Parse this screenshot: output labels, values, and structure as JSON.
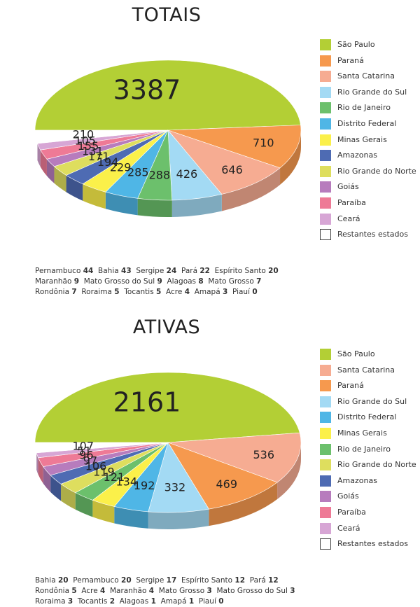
{
  "chart_data": [
    {
      "type": "pie",
      "title": "TOTAIS",
      "slices": [
        {
          "label": "São Paulo",
          "value": 3387,
          "color": "#b3cf35"
        },
        {
          "label": "Paraná",
          "value": 710,
          "color": "#f6994e"
        },
        {
          "label": "Santa Catarina",
          "value": 646,
          "color": "#f6ac92"
        },
        {
          "label": "Rio Grande do Sul",
          "value": 426,
          "color": "#a3daf4"
        },
        {
          "label": "Rio de Janeiro",
          "value": 288,
          "color": "#6cc06c"
        },
        {
          "label": "Distrito Federal",
          "value": 285,
          "color": "#4fb6e6"
        },
        {
          "label": "Minas Gerais",
          "value": 229,
          "color": "#fbf04a"
        },
        {
          "label": "Amazonas",
          "value": 194,
          "color": "#4e6bb3"
        },
        {
          "label": "Rio Grande do Norte",
          "value": 171,
          "color": "#dede5e"
        },
        {
          "label": "Goiás",
          "value": 131,
          "color": "#b77cbd"
        },
        {
          "label": "Paraíba",
          "value": 155,
          "color": "#ee7a96"
        },
        {
          "label": "Ceará",
          "value": 105,
          "color": "#d7a6d5"
        },
        {
          "label": "Restantes estados",
          "value": 210,
          "color": "#ffffff"
        }
      ],
      "legend": [
        "São Paulo",
        "Paraná",
        "Santa Catarina",
        "Rio Grande do Sul",
        "Rio de Janeiro",
        "Distrito Federal",
        "Minas Gerais",
        "Amazonas",
        "Rio Grande do Norte",
        "Goiás",
        "Paraíba",
        "Ceará",
        "Restantes estados"
      ],
      "legend_placement": "right",
      "footnote": [
        [
          {
            "name": "Pernambuco",
            "value": 44
          },
          {
            "name": "Bahia",
            "value": 43
          },
          {
            "name": "Sergipe",
            "value": 24
          },
          {
            "name": "Pará",
            "value": 22
          },
          {
            "name": "Espírito Santo",
            "value": 20
          }
        ],
        [
          {
            "name": "Maranhão",
            "value": 9
          },
          {
            "name": "Mato Grosso do Sul",
            "value": 9
          },
          {
            "name": "Alagoas",
            "value": 8
          },
          {
            "name": "Mato Grosso",
            "value": 7
          }
        ],
        [
          {
            "name": "Rondônia",
            "value": 7
          },
          {
            "name": "Roraima",
            "value": 5
          },
          {
            "name": "Tocantis",
            "value": 5
          },
          {
            "name": "Acre",
            "value": 4
          },
          {
            "name": "Amapá",
            "value": 3
          },
          {
            "name": "Piauí",
            "value": 0
          }
        ]
      ]
    },
    {
      "type": "pie",
      "title": "ATIVAS",
      "slices": [
        {
          "label": "São Paulo",
          "value": 2161,
          "color": "#b3cf35"
        },
        {
          "label": "Santa Catarina",
          "value": 536,
          "color": "#f6ac92"
        },
        {
          "label": "Paraná",
          "value": 469,
          "color": "#f6994e"
        },
        {
          "label": "Rio Grande do Sul",
          "value": 332,
          "color": "#a3daf4"
        },
        {
          "label": "Distrito Federal",
          "value": 192,
          "color": "#4fb6e6"
        },
        {
          "label": "Minas Gerais",
          "value": 134,
          "color": "#fbf04a"
        },
        {
          "label": "Rio de Janeiro",
          "value": 121,
          "color": "#6cc06c"
        },
        {
          "label": "Rio Grande do Norte",
          "value": 119,
          "color": "#dede5e"
        },
        {
          "label": "Amazonas",
          "value": 106,
          "color": "#4e6bb3"
        },
        {
          "label": "Goiás",
          "value": 97,
          "color": "#b77cbd"
        },
        {
          "label": "Paraíba",
          "value": 96,
          "color": "#ee7a96"
        },
        {
          "label": "Ceará",
          "value": 51,
          "color": "#d7a6d5"
        },
        {
          "label": "Restantes estados",
          "value": 107,
          "color": "#ffffff"
        }
      ],
      "legend": [
        "São Paulo",
        "Santa Catarina",
        "Paraná",
        "Rio Grande do Sul",
        "Distrito Federal",
        "Minas Gerais",
        "Rio de Janeiro",
        "Rio Grande do Norte",
        "Amazonas",
        "Goiás",
        "Paraíba",
        "Ceará",
        "Restantes estados"
      ],
      "legend_placement": "right",
      "footnote": [
        [
          {
            "name": "Bahia",
            "value": 20
          },
          {
            "name": "Pernambuco",
            "value": 20
          },
          {
            "name": "Sergipe",
            "value": 17
          },
          {
            "name": "Espírito Santo",
            "value": 12
          },
          {
            "name": "Pará",
            "value": 12
          }
        ],
        [
          {
            "name": "Rondônia",
            "value": 5
          },
          {
            "name": "Acre",
            "value": 4
          },
          {
            "name": "Maranhão",
            "value": 4
          },
          {
            "name": "Mato Grosso",
            "value": 3
          },
          {
            "name": "Mato Grosso do Sul",
            "value": 3
          }
        ],
        [
          {
            "name": "Roraima",
            "value": 3
          },
          {
            "name": "Tocantis",
            "value": 2
          },
          {
            "name": "Alagoas",
            "value": 1
          },
          {
            "name": "Amapá",
            "value": 1
          },
          {
            "name": "Piauí",
            "value": 0
          }
        ]
      ]
    }
  ]
}
